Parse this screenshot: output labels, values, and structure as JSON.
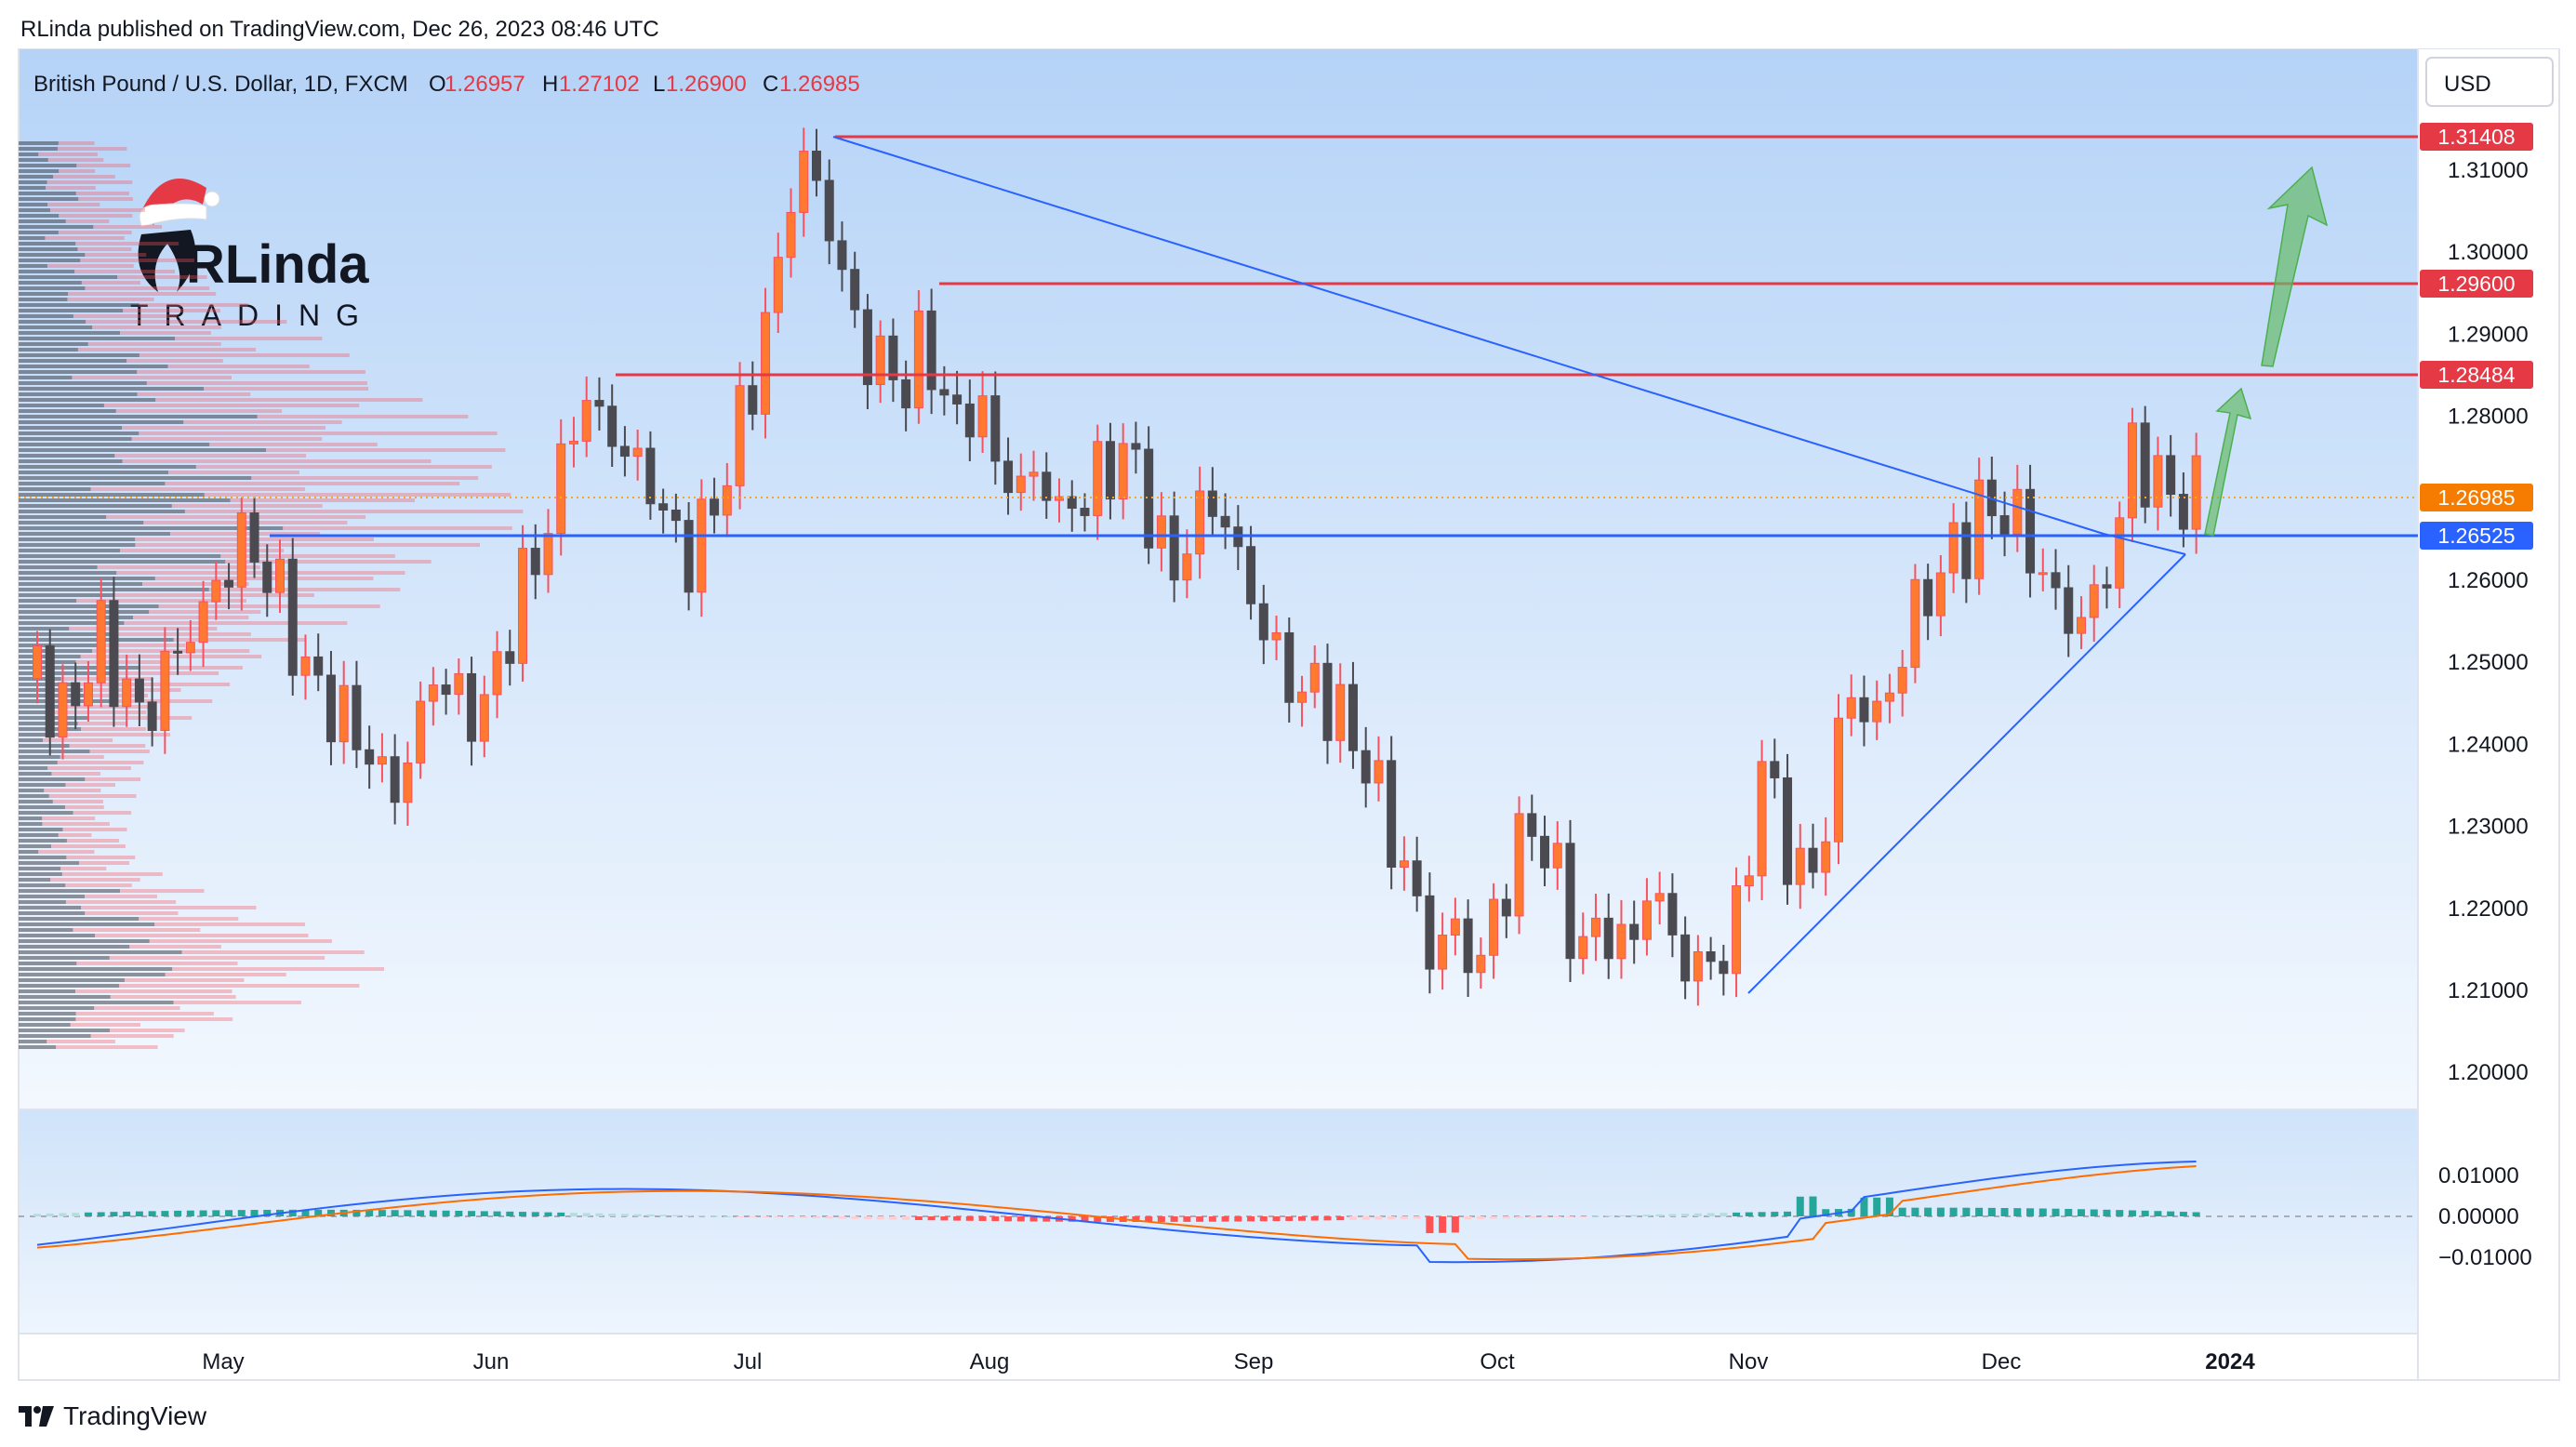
{
  "publisher": "RLinda published on TradingView.com, Dec 26, 2023 08:46 UTC",
  "footer": {
    "brand": "TradingView"
  },
  "header": {
    "symbol": "British Pound / U.S. Dollar, 1D, FXCM",
    "o_label": "O",
    "o": "1.26957",
    "h_label": "H",
    "h": "1.27102",
    "l_label": "L",
    "l": "1.26900",
    "c_label": "C",
    "c": "1.26985",
    "currency": "USD"
  },
  "logo": {
    "line1": "RLinda",
    "line2": "TRADING",
    "icon": "santa-hat-logo-icon"
  },
  "colors": {
    "up": "#f7525f",
    "up_body": "#ff7a30",
    "down": "#4a4a50",
    "resistance": "#e53946",
    "support": "#2962ff",
    "trend": "#2962ff",
    "price_label": "#f57c00",
    "arrow": "#66bb6a",
    "macd": "#2962ff",
    "signal": "#ff6d00",
    "hist_pos": "#26a69a",
    "hist_pos_light": "#b2dfdb",
    "hist_neg": "#ff5252",
    "hist_neg_light": "#ffcdd2"
  },
  "chart_data": [
    {
      "type": "candlestick",
      "title": "British Pound / U.S. Dollar, 1D, FXCM",
      "y_axis": {
        "ylim": [
          1.195,
          1.3215
        ],
        "ticks": [
          "1.31000",
          "1.30000",
          "1.29000",
          "1.28000",
          "1.26000",
          "1.25000",
          "1.24000",
          "1.23000",
          "1.22000",
          "1.21000",
          "1.20000"
        ]
      },
      "x_axis": {
        "ticks": [
          "May",
          "Jun",
          "Jul",
          "Aug",
          "Sep",
          "Oct",
          "Nov",
          "Dec",
          "2024"
        ]
      },
      "levels": [
        {
          "name": "resistance-1",
          "label": "1.31408",
          "value": 1.31408
        },
        {
          "name": "resistance-2",
          "label": "1.29600",
          "value": 1.296
        },
        {
          "name": "resistance-3",
          "label": "1.28484",
          "value": 1.28484
        },
        {
          "name": "support",
          "label": "1.26525",
          "value": 1.26525
        }
      ],
      "last_price": {
        "label": "1.26985",
        "value": 1.26985
      },
      "closes_path": [
        [
          0,
          1.25
        ],
        [
          3,
          1.242
        ],
        [
          6,
          1.248
        ],
        [
          9,
          1.253
        ],
        [
          12,
          1.246
        ],
        [
          15,
          1.243
        ],
        [
          18,
          1.25
        ],
        [
          22,
          1.255
        ],
        [
          25,
          1.26
        ],
        [
          28,
          1.265
        ],
        [
          31,
          1.262
        ],
        [
          34,
          1.256
        ],
        [
          37,
          1.248
        ],
        [
          40,
          1.245
        ],
        [
          43,
          1.242
        ],
        [
          46,
          1.238
        ],
        [
          49,
          1.234
        ],
        [
          52,
          1.242
        ],
        [
          55,
          1.25
        ],
        [
          58,
          1.244
        ],
        [
          62,
          1.245
        ],
        [
          65,
          1.256
        ],
        [
          68,
          1.262
        ],
        [
          71,
          1.27
        ],
        [
          74,
          1.282
        ],
        [
          77,
          1.28
        ],
        [
          80,
          1.276
        ],
        [
          84,
          1.272
        ],
        [
          87,
          1.265
        ],
        [
          90,
          1.263
        ],
        [
          93,
          1.27
        ],
        [
          96,
          1.278
        ],
        [
          99,
          1.288
        ],
        [
          102,
          1.3
        ],
        [
          104,
          1.312
        ],
        [
          107,
          1.308
        ],
        [
          110,
          1.298
        ],
        [
          113,
          1.288
        ],
        [
          116,
          1.286
        ],
        [
          119,
          1.284
        ],
        [
          122,
          1.29
        ],
        [
          125,
          1.278
        ],
        [
          128,
          1.282
        ],
        [
          131,
          1.276
        ],
        [
          134,
          1.27
        ],
        [
          137,
          1.274
        ],
        [
          140,
          1.268
        ],
        [
          143,
          1.27
        ],
        [
          146,
          1.273
        ],
        [
          149,
          1.276
        ],
        [
          152,
          1.27
        ],
        [
          155,
          1.26
        ],
        [
          158,
          1.266
        ],
        [
          161,
          1.27
        ],
        [
          164,
          1.264
        ],
        [
          167,
          1.256
        ],
        [
          170,
          1.25
        ],
        [
          173,
          1.246
        ],
        [
          176,
          1.247
        ],
        [
          179,
          1.242
        ],
        [
          182,
          1.238
        ],
        [
          185,
          1.23
        ],
        [
          188,
          1.223
        ],
        [
          191,
          1.214
        ],
        [
          194,
          1.218
        ],
        [
          197,
          1.212
        ],
        [
          200,
          1.22
        ],
        [
          203,
          1.228
        ],
        [
          206,
          1.23
        ],
        [
          209,
          1.22
        ],
        [
          212,
          1.215
        ],
        [
          215,
          1.218
        ],
        [
          218,
          1.214
        ],
        [
          221,
          1.224
        ],
        [
          224,
          1.216
        ],
        [
          227,
          1.212
        ],
        [
          230,
          1.214
        ],
        [
          233,
          1.218
        ],
        [
          236,
          1.238
        ],
        [
          239,
          1.23
        ],
        [
          242,
          1.222
        ],
        [
          245,
          1.23
        ],
        [
          248,
          1.248
        ],
        [
          251,
          1.242
        ],
        [
          254,
          1.247
        ],
        [
          257,
          1.256
        ],
        [
          260,
          1.26
        ],
        [
          263,
          1.264
        ],
        [
          266,
          1.268
        ],
        [
          269,
          1.269
        ],
        [
          272,
          1.266
        ],
        [
          275,
          1.26
        ],
        [
          278,
          1.255
        ],
        [
          281,
          1.256
        ],
        [
          284,
          1.262
        ],
        [
          287,
          1.276
        ],
        [
          290,
          1.272
        ],
        [
          293,
          1.27
        ],
        [
          296,
          1.2698
        ]
      ]
    },
    {
      "type": "line",
      "title": "",
      "series": [
        {
          "values": []
        },
        {
          "values": []
        }
      ],
      "y_axis": {
        "ylim": [
          -0.0155,
          0.0135
        ],
        "ticks": [
          "0.01000",
          "0.00000",
          "−0.01000"
        ]
      }
    }
  ]
}
